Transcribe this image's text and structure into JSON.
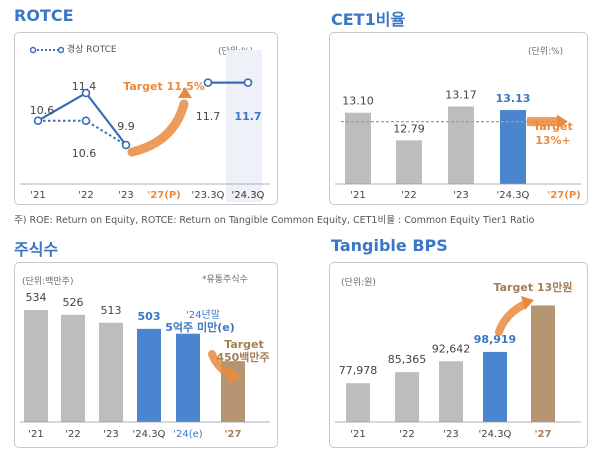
{
  "colors": {
    "title": "#3a78c6",
    "gray_bar": "#bdbdbd",
    "blue_bar": "#4a86d0",
    "gold_bar": "#b49471",
    "target": "#ea8a3d",
    "highlight": "#eef2f8"
  },
  "footnote": "주) ROE: Return on Equity, ROTCE: Return on Tangible Common Equity, CET1비율 : Common Equity Tier1 Ratio",
  "panels": {
    "rotce": {
      "title": "ROTCE",
      "unit": "(단위:%)",
      "legend": "경상 ROTCE",
      "target": "Target 11.5%"
    },
    "cet1": {
      "title": "CET1비율",
      "unit": "(단위:%)",
      "target_line1": "Target",
      "target_line2": "13%+"
    },
    "shares": {
      "title": "주식수",
      "unit": "(단위:백만주)",
      "note": "*유통주식수",
      "annot1_line1": "'24년말",
      "annot1_line2": "5억주 미만(e)",
      "annot2_line1": "Target",
      "annot2_line2": "450백만주"
    },
    "bps": {
      "title": "Tangible BPS",
      "unit": "(단위:원)",
      "target": "Target 13만원"
    }
  },
  "chart_data": [
    {
      "id": "rotce",
      "type": "line",
      "title": "ROTCE",
      "categories": [
        "'21",
        "'22",
        "'23",
        "'27(P)",
        "'23.3Q",
        "'24.3Q"
      ],
      "series": [
        {
          "name": "",
          "values": [
            10.6,
            11.4,
            9.9,
            null,
            11.7,
            11.7
          ]
        },
        {
          "name": "경상 ROTCE",
          "values": [
            10.6,
            10.6,
            9.9,
            null,
            null,
            null
          ]
        }
      ],
      "labels": {
        "annual": [
          "10.6",
          "11.4",
          "9.9"
        ],
        "recurring_mid": "10.6",
        "quarter": [
          "11.7",
          "11.7"
        ]
      },
      "ylim": [
        9,
        12.5
      ],
      "target": "Target 11.5%"
    },
    {
      "id": "cet1",
      "type": "bar",
      "title": "CET1비율",
      "categories": [
        "'21",
        "'22",
        "'23",
        "'24.3Q",
        "'27(P)"
      ],
      "values": [
        13.1,
        12.79,
        13.17,
        13.13,
        null
      ],
      "labels": [
        "13.10",
        "12.79",
        "13.17",
        "13.13"
      ],
      "ylim": [
        12.3,
        13.4
      ],
      "target_value": 13.0,
      "target": "Target 13%+"
    },
    {
      "id": "shares",
      "type": "bar",
      "title": "주식수",
      "categories": [
        "'21",
        "'22",
        "'23",
        "'24.3Q",
        "'24(e)",
        "'27"
      ],
      "values": [
        534,
        526,
        513,
        503,
        495,
        450
      ],
      "labels": [
        "534",
        "526",
        "513",
        "503"
      ],
      "ylim": [
        350,
        560
      ]
    },
    {
      "id": "bps",
      "type": "bar",
      "title": "Tangible BPS",
      "categories": [
        "'21",
        "'22",
        "'23",
        "'24.3Q",
        "'27"
      ],
      "values": [
        77978,
        85365,
        92642,
        98919,
        130000
      ],
      "labels": [
        "77,978",
        "85,365",
        "92,642",
        "98,919"
      ],
      "ylim": [
        52000,
        135000
      ],
      "target": "Target 13만원"
    }
  ]
}
